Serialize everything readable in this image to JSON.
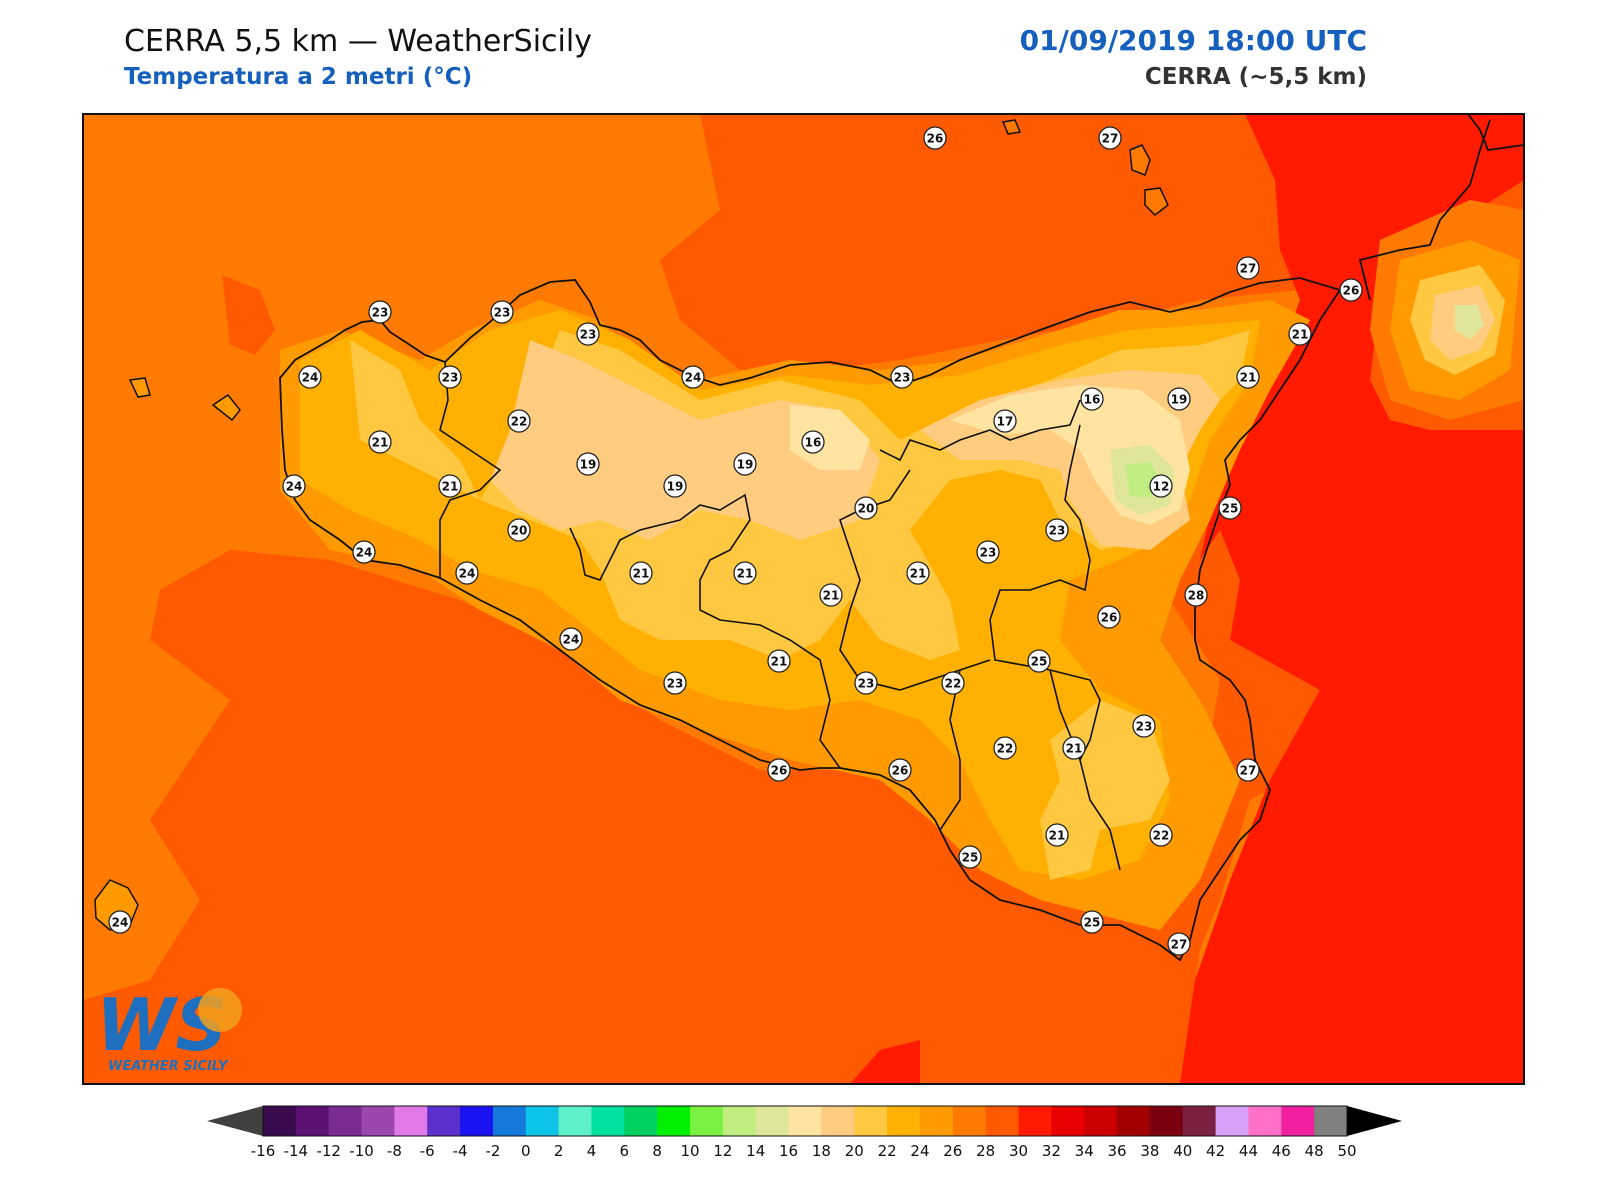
{
  "header": {
    "title": "CERRA 5,5 km — WeatherSicily",
    "subtitle": "Temperatura a 2 metri (°C)",
    "datetime": "01/09/2019 18:00 UTC",
    "model": "CERRA (~5,5 km)"
  },
  "logo": {
    "letters": "WS",
    "name": "WEATHER SICILY"
  },
  "colorbar": {
    "ticks": [
      "-16",
      "-14",
      "-12",
      "-10",
      "-8",
      "-6",
      "-4",
      "-2",
      "0",
      "2",
      "4",
      "6",
      "8",
      "10",
      "12",
      "14",
      "16",
      "18",
      "20",
      "22",
      "24",
      "26",
      "28",
      "30",
      "32",
      "34",
      "36",
      "38",
      "40",
      "42",
      "44",
      "46",
      "48",
      "50"
    ],
    "colors": [
      "#3a0a4e",
      "#5c1175",
      "#7a2b93",
      "#9b45ae",
      "#e07ae8",
      "#5a2fcc",
      "#1a12f0",
      "#1479d8",
      "#0cc4e6",
      "#5ef0c8",
      "#00e0a0",
      "#00d060",
      "#00f000",
      "#7af040",
      "#c0ec80",
      "#dfe69a",
      "#ffe3a0",
      "#ffcc80",
      "#ffc840",
      "#ffb000",
      "#ff9a00",
      "#ff7a00",
      "#ff5a00",
      "#ff1a00",
      "#e80000",
      "#cc0000",
      "#a00000",
      "#7a0010",
      "#7a2040",
      "#d8a0f8",
      "#ff70c8",
      "#f020a0",
      "#808080",
      "#383838"
    ],
    "under_color": "#404040",
    "over_color": "#000000"
  },
  "map": {
    "background_value": 26,
    "station_values": [
      "26",
      "27",
      "23",
      "23",
      "23",
      "24",
      "23",
      "24",
      "22",
      "21",
      "24",
      "21",
      "19",
      "19",
      "19",
      "16",
      "20",
      "17",
      "16",
      "19",
      "23",
      "21",
      "27",
      "26",
      "21",
      "12",
      "25",
      "20",
      "24",
      "24",
      "21",
      "21",
      "21",
      "21",
      "23",
      "23",
      "28",
      "26",
      "25",
      "24",
      "23",
      "21",
      "23",
      "22",
      "21",
      "22",
      "23",
      "26",
      "26",
      "27",
      "25",
      "21",
      "22",
      "25",
      "27",
      "24"
    ]
  }
}
